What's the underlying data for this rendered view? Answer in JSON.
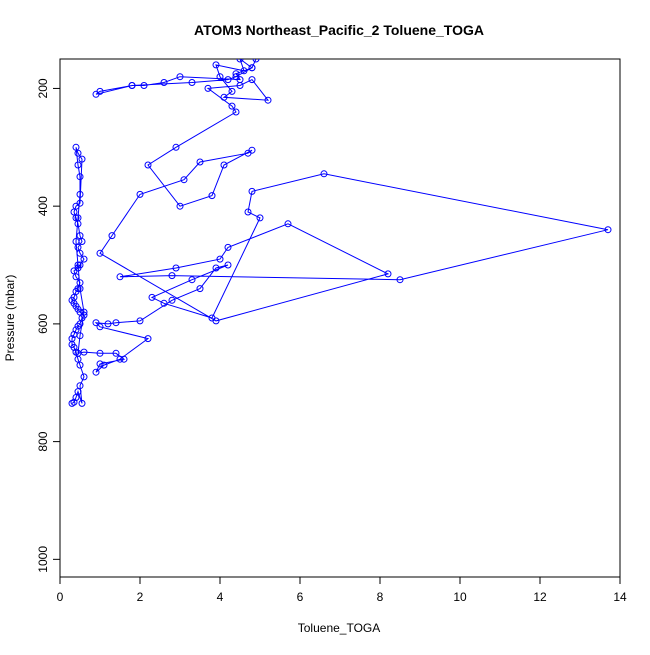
{
  "chart_data": {
    "type": "scatter",
    "title": "ATOM3 Northeast_Pacific_2 Toluene_TOGA",
    "xlabel": "Toluene_TOGA",
    "ylabel": "Pressure (mbar)",
    "xlim": [
      0,
      14
    ],
    "ylim": [
      1030,
      150
    ],
    "y_reversed": true,
    "grid": false,
    "legend": "none",
    "series_color": "#0000ff",
    "marker": "open-circle",
    "connect_points": true,
    "x_ticks": [
      "0",
      "2",
      "4",
      "6",
      "8",
      "10",
      "12",
      "14"
    ],
    "y_ticks": [
      "200",
      "400",
      "600",
      "800",
      "1000"
    ],
    "x_tick_values": [
      0,
      2,
      4,
      6,
      8,
      10,
      12,
      14
    ],
    "y_tick_values": [
      200,
      400,
      600,
      800,
      1000
    ],
    "series": [
      {
        "x": [
          0.3,
          0.35,
          0.4,
          0.45,
          0.55,
          0.5,
          0.6,
          0.5,
          0.45,
          0.4,
          0.35,
          0.3,
          0.3,
          0.35,
          0.4,
          0.45,
          0.5,
          0.55,
          0.6,
          0.5,
          0.45,
          0.4,
          0.35,
          0.3,
          0.35,
          0.4,
          0.45,
          0.5,
          0.4,
          0.35,
          0.45,
          0.5,
          0.6,
          0.5,
          0.45,
          0.55,
          0.5,
          0.45,
          0.4,
          0.35,
          0.4,
          0.5,
          0.55,
          0.45,
          0.4,
          0.45,
          0.5,
          0.5,
          0.45,
          0.4,
          0.45,
          0.5,
          0.6,
          0.5,
          0.45,
          0.6,
          1.0,
          1.4,
          1.6,
          1.0,
          0.9,
          1.1,
          1.5,
          2.2,
          1.0,
          0.9,
          1.2,
          1.4,
          2.0,
          2.8,
          3.5,
          3.9,
          4.2,
          3.3,
          2.3,
          2.6,
          3.8,
          5.0,
          4.7,
          4.8,
          6.6,
          13.7,
          8.5,
          2.8,
          1.5,
          2.9,
          4.0,
          4.2,
          5.7,
          8.2,
          3.9,
          1.0,
          1.3,
          2.0,
          3.1,
          3.5,
          4.7,
          4.8,
          4.1,
          3.8,
          3.0,
          2.2,
          2.9,
          4.4,
          4.3,
          3.7,
          4.5,
          4.8,
          5.2,
          4.1,
          4.3,
          4.0,
          3.9,
          4.6,
          4.5,
          4.8,
          4.4,
          4.5,
          3.0,
          2.6,
          2.1,
          1.8,
          0.9,
          1.0,
          1.8,
          3.3,
          4.2,
          4.4,
          4.8,
          4.9
        ],
        "y": [
          735,
          733,
          725,
          715,
          735,
          705,
          690,
          670,
          660,
          648,
          640,
          635,
          625,
          618,
          610,
          604,
          600,
          590,
          585,
          580,
          575,
          570,
          565,
          560,
          555,
          545,
          540,
          530,
          520,
          510,
          505,
          500,
          490,
          480,
          470,
          460,
          450,
          430,
          420,
          410,
          400,
          395,
          320,
          310,
          300,
          330,
          350,
          380,
          420,
          460,
          500,
          540,
          580,
          620,
          650,
          648,
          650,
          650,
          660,
          668,
          682,
          670,
          660,
          625,
          605,
          598,
          600,
          598,
          595,
          560,
          540,
          505,
          500,
          525,
          555,
          565,
          590,
          420,
          410,
          375,
          345,
          440,
          525,
          518,
          520,
          505,
          490,
          470,
          430,
          515,
          595,
          480,
          450,
          380,
          355,
          325,
          310,
          305,
          330,
          382,
          400,
          330,
          300,
          240,
          230,
          200,
          195,
          185,
          220,
          215,
          205,
          180,
          160,
          170,
          150,
          165,
          175,
          185,
          180,
          190,
          195,
          195,
          210,
          205,
          195,
          190,
          185,
          180,
          165,
          150
        ]
      }
    ]
  }
}
